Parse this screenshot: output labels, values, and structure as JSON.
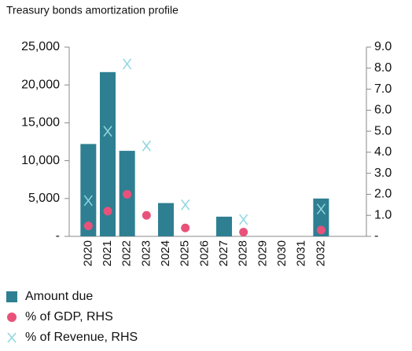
{
  "chart_data": {
    "type": "bar",
    "title": "Treasury bonds amortization profile",
    "categories": [
      "2020",
      "2021",
      "2022",
      "2023",
      "2024",
      "2025",
      "2026",
      "2027",
      "2028",
      "2029",
      "2030",
      "2031",
      "2032"
    ],
    "series": [
      {
        "name": "Amount due",
        "type": "bar",
        "color": "#2e7f91",
        "values": [
          12200,
          21700,
          11300,
          0,
          4400,
          0,
          0,
          2600,
          0,
          0,
          0,
          0,
          5000
        ]
      },
      {
        "name": "% of GDP, RHS",
        "type": "dot",
        "axis": "y2",
        "color": "#e8527a",
        "values": [
          0.5,
          1.2,
          2.0,
          1.0,
          null,
          0.4,
          null,
          null,
          0.2,
          null,
          null,
          null,
          0.3
        ]
      },
      {
        "name": "% of Revenue, RHS",
        "type": "cross",
        "axis": "y2",
        "color": "#8fd6e0",
        "values": [
          1.7,
          5.0,
          8.2,
          4.3,
          null,
          1.5,
          null,
          null,
          0.8,
          null,
          null,
          null,
          1.3
        ]
      }
    ],
    "ylim": [
      0,
      25000
    ],
    "yticks": [
      {
        "value": 0,
        "label": "-"
      },
      {
        "value": 5000,
        "label": "5,000"
      },
      {
        "value": 10000,
        "label": "10,000"
      },
      {
        "value": 15000,
        "label": "15,000"
      },
      {
        "value": 20000,
        "label": "20,000"
      },
      {
        "value": 25000,
        "label": "25,000"
      }
    ],
    "y2lim": [
      0,
      9
    ],
    "y2ticks": [
      {
        "value": 0,
        "label": "-"
      },
      {
        "value": 1,
        "label": "1.0"
      },
      {
        "value": 2,
        "label": "2.0"
      },
      {
        "value": 3,
        "label": "3.0"
      },
      {
        "value": 4,
        "label": "4.0"
      },
      {
        "value": 5,
        "label": "5.0"
      },
      {
        "value": 6,
        "label": "6.0"
      },
      {
        "value": 7,
        "label": "7.0"
      },
      {
        "value": 8,
        "label": "8.0"
      },
      {
        "value": 9,
        "label": "9.0"
      }
    ],
    "legend": "bottom-left"
  }
}
